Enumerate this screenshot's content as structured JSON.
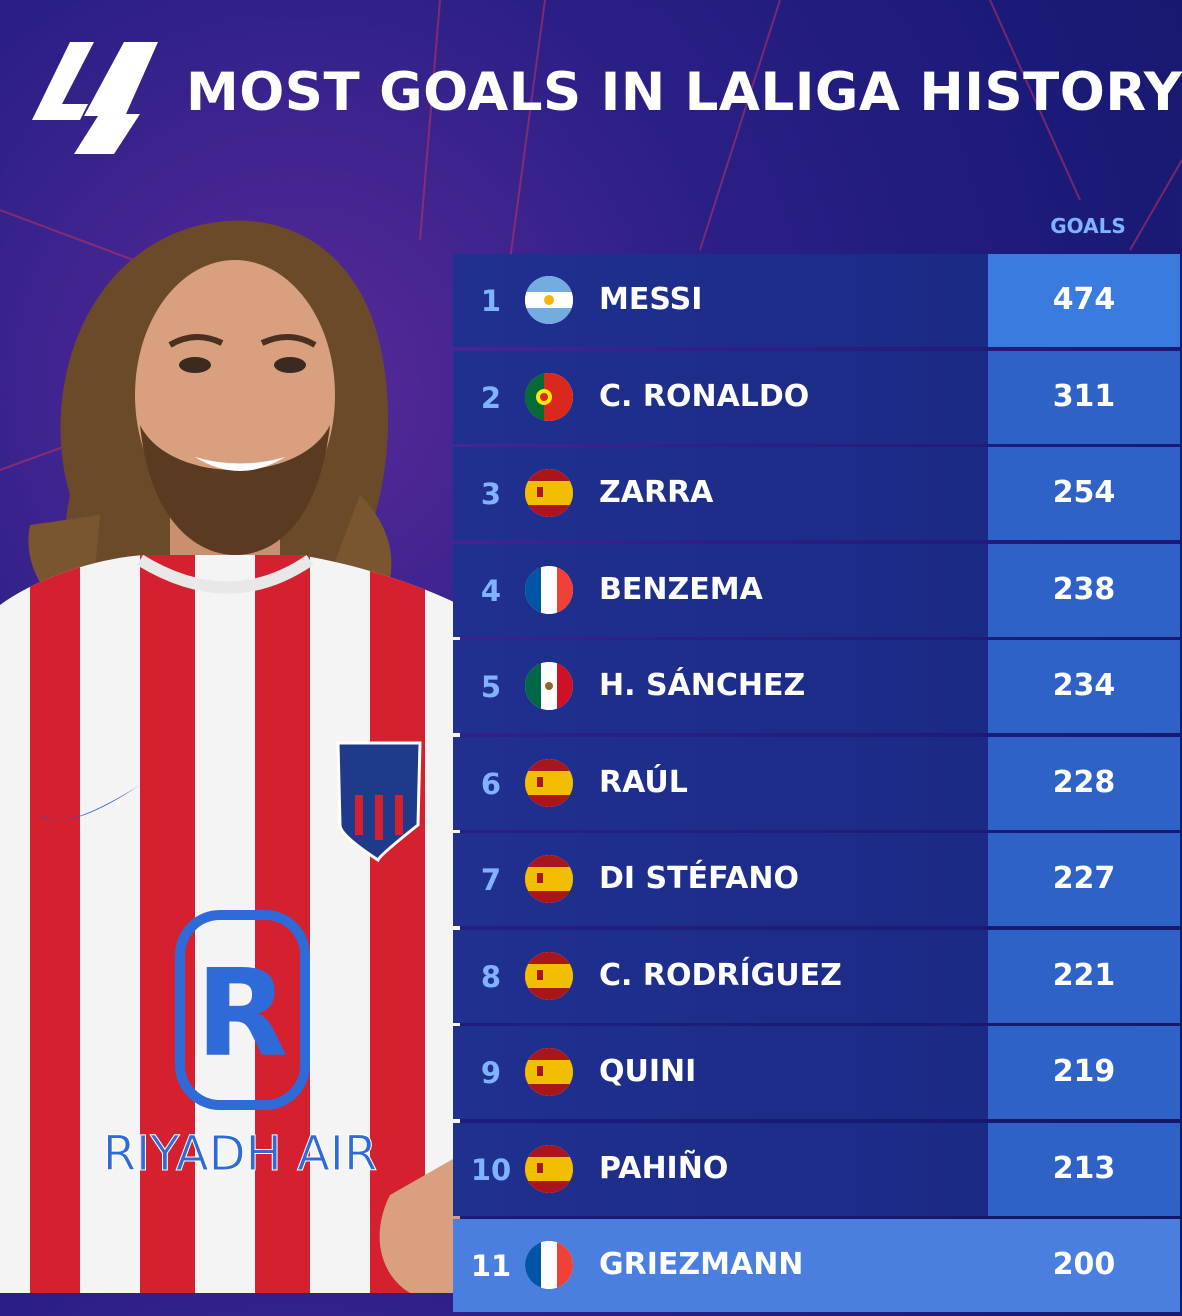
{
  "header": {
    "title": "MOST GOALS IN LALIGA HISTORY"
  },
  "table": {
    "column_header": "GOALS",
    "rows": [
      {
        "rank": "1",
        "flag": "argentina-flag-icon",
        "name": "MESSI",
        "goals": "474"
      },
      {
        "rank": "2",
        "flag": "portugal-flag-icon",
        "name": "C. RONALDO",
        "goals": "311"
      },
      {
        "rank": "3",
        "flag": "spain-flag-icon",
        "name": "ZARRA",
        "goals": "254"
      },
      {
        "rank": "4",
        "flag": "france-flag-icon",
        "name": "BENZEMA",
        "goals": "238"
      },
      {
        "rank": "5",
        "flag": "mexico-flag-icon",
        "name": "H. SÁNCHEZ",
        "goals": "234"
      },
      {
        "rank": "6",
        "flag": "spain-flag-icon",
        "name": "RAÚL",
        "goals": "228"
      },
      {
        "rank": "7",
        "flag": "spain-flag-icon",
        "name": "DI STÉFANO",
        "goals": "227"
      },
      {
        "rank": "8",
        "flag": "spain-flag-icon",
        "name": "C. RODRÍGUEZ",
        "goals": "221"
      },
      {
        "rank": "9",
        "flag": "spain-flag-icon",
        "name": "QUINI",
        "goals": "219"
      },
      {
        "rank": "10",
        "flag": "spain-flag-icon",
        "name": "PAHIÑO",
        "goals": "213"
      },
      {
        "rank": "11",
        "flag": "france-flag-icon",
        "name": "GRIEZMANN",
        "goals": "200"
      }
    ]
  },
  "player_photo": {
    "shirt_sponsor": "RIYADH AIR"
  },
  "colors": {
    "background": "#1b1a78",
    "row": "#20308f",
    "value_cell": "#2f62c7",
    "highlight": "#4a7fe0",
    "rank_text": "#7fb3ff"
  }
}
